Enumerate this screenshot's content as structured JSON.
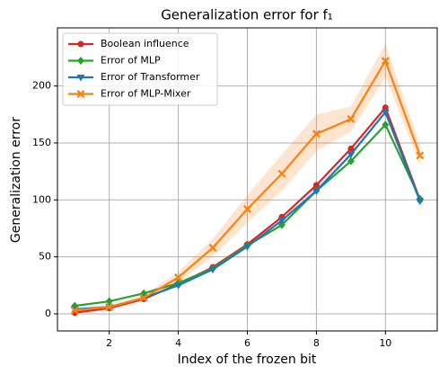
{
  "chart_data": {
    "type": "line",
    "title": "Generalization error for f₁",
    "x_label": "Index of the frozen bit",
    "y_label": "Generalization error",
    "x": [
      1,
      2,
      3,
      4,
      5,
      6,
      7,
      8,
      9,
      10,
      11
    ],
    "xlim": [
      0.5,
      11.5
    ],
    "xticks": [
      2,
      4,
      6,
      8,
      10
    ],
    "ylim": [
      -15,
      251
    ],
    "yticks": [
      0,
      50,
      100,
      150,
      200
    ],
    "grid": true,
    "legend": "upper left",
    "series": [
      {
        "name": "Boolean influence",
        "color": "#d62728",
        "marker": "circle",
        "values": [
          1,
          5,
          13,
          26,
          41,
          61,
          85,
          113,
          145,
          181,
          100
        ]
      },
      {
        "name": "Error of MLP",
        "color": "#2ca02c",
        "marker": "diamond",
        "values": [
          7,
          11,
          18,
          27,
          40,
          60,
          78,
          108,
          134,
          166,
          101
        ]
      },
      {
        "name": "Error of Transformer",
        "color": "#1f77b4",
        "marker": "triangle-down",
        "values": [
          4,
          6,
          14,
          25,
          39,
          59,
          82,
          108,
          140,
          177,
          99
        ]
      },
      {
        "name": "Error of MLP-Mixer",
        "color": "#ff7f0e",
        "marker": "x",
        "values": [
          3,
          6,
          14,
          32,
          58,
          92,
          123,
          158,
          171,
          222,
          139
        ],
        "band_lower": [
          1,
          4,
          12,
          28,
          50,
          80,
          108,
          143,
          160,
          208,
          130
        ],
        "band_upper": [
          5,
          8,
          16,
          37,
          66,
          104,
          140,
          175,
          182,
          237,
          148
        ]
      }
    ]
  }
}
